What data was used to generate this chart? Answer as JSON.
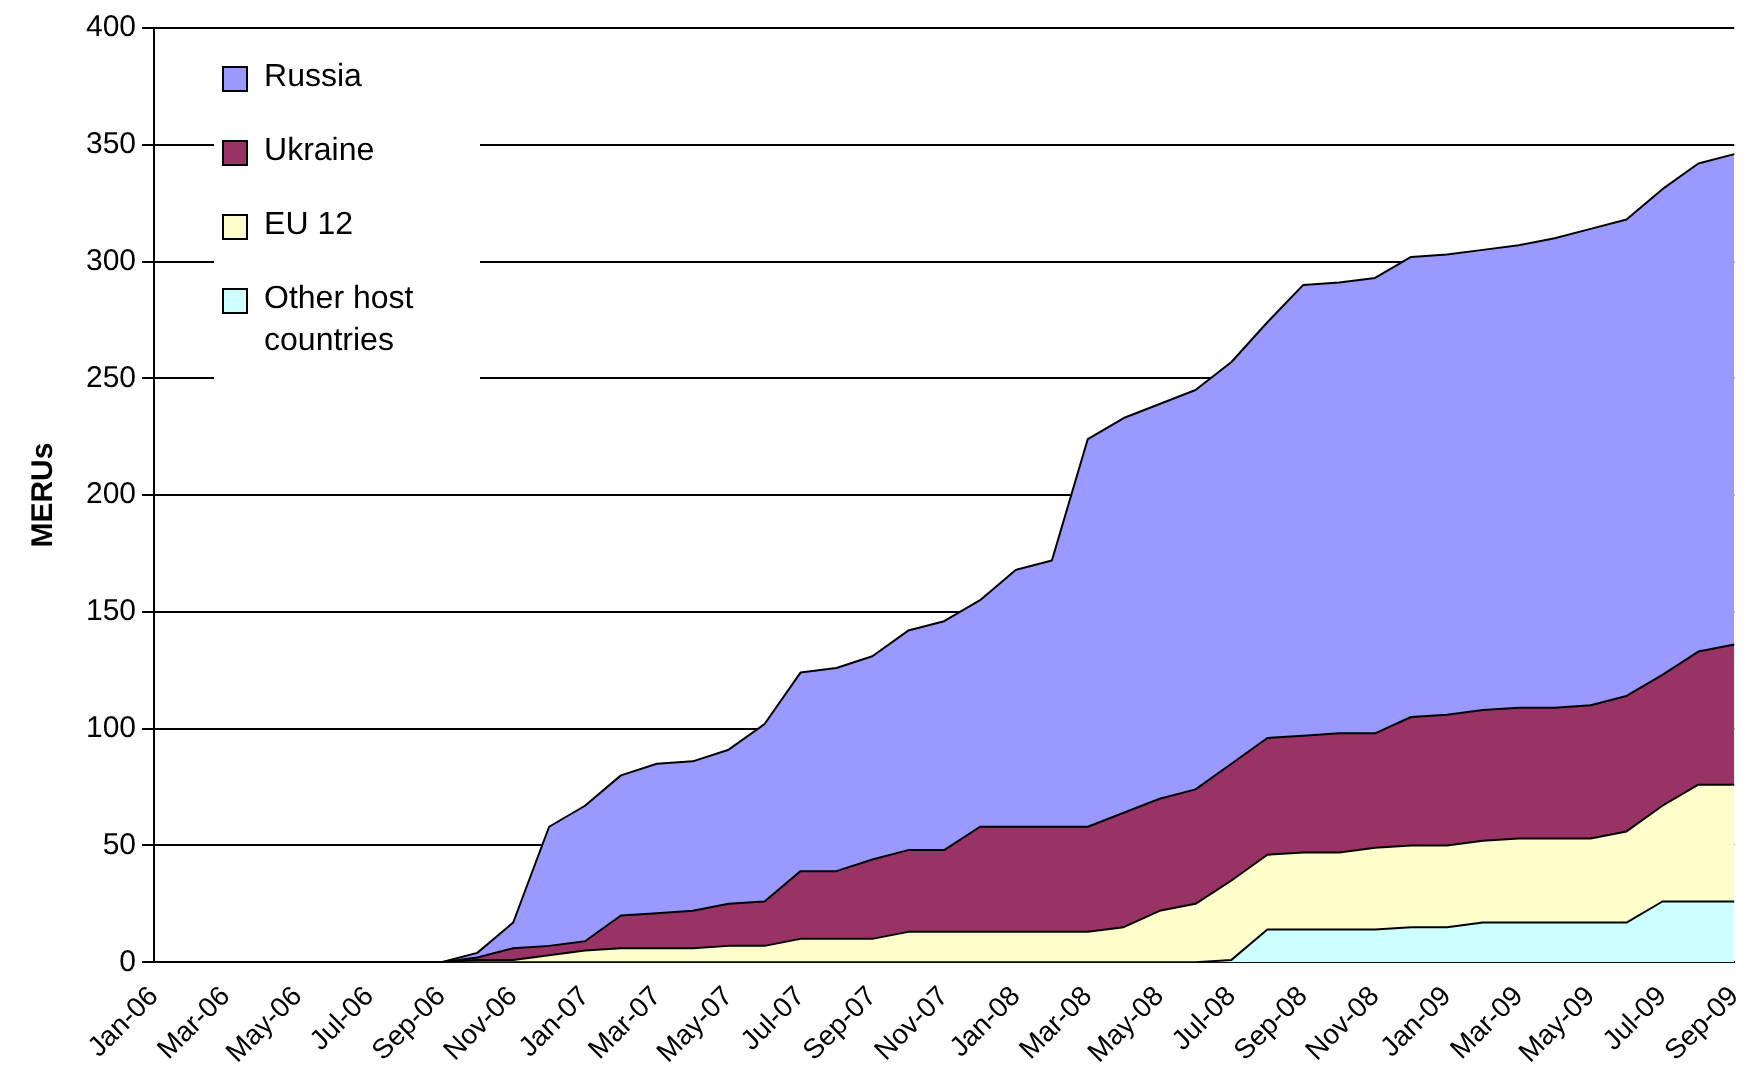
{
  "chart_data": {
    "type": "area",
    "stacked": true,
    "ylabel": "MERUs",
    "categories": [
      "Jan-06",
      null,
      "Mar-06",
      null,
      "May-06",
      null,
      "Jul-06",
      null,
      "Sep-06",
      null,
      "Nov-06",
      null,
      "Jan-07",
      null,
      "Mar-07",
      null,
      "May-07",
      null,
      "Jul-07",
      null,
      "Sep-07",
      null,
      "Nov-07",
      null,
      "Jan-08",
      null,
      "Mar-08",
      null,
      "May-08",
      null,
      "Jul-08",
      null,
      "Sep-08",
      null,
      "Nov-08",
      null,
      "Jan-09",
      null,
      "Mar-09",
      null,
      "May-09",
      null,
      "Jul-09",
      null,
      "Sep-09"
    ],
    "series": [
      {
        "name": "Other host countries",
        "color": "#ccffff",
        "values": [
          0,
          0,
          0,
          0,
          0,
          0,
          0,
          0,
          0,
          0,
          0,
          0,
          0,
          0,
          0,
          0,
          0,
          0,
          0,
          0,
          0,
          0,
          0,
          0,
          0,
          0,
          0,
          0,
          0,
          0,
          1,
          14,
          14,
          14,
          14,
          15,
          15,
          17,
          17,
          17,
          17,
          17,
          26,
          26,
          26
        ]
      },
      {
        "name": "EU 12",
        "color": "#ffffcc",
        "values": [
          0,
          0,
          0,
          0,
          0,
          0,
          0,
          0,
          0,
          1,
          1,
          3,
          5,
          6,
          6,
          6,
          7,
          7,
          10,
          10,
          10,
          13,
          13,
          13,
          13,
          13,
          13,
          15,
          22,
          25,
          34,
          32,
          33,
          33,
          35,
          35,
          35,
          35,
          36,
          36,
          36,
          39,
          41,
          50,
          50
        ]
      },
      {
        "name": "Ukraine",
        "color": "#993366",
        "values": [
          0,
          0,
          0,
          0,
          0,
          0,
          0,
          0,
          0,
          1,
          5,
          4,
          4,
          14,
          15,
          16,
          18,
          19,
          29,
          29,
          34,
          35,
          35,
          45,
          45,
          45,
          45,
          49,
          48,
          49,
          50,
          50,
          50,
          51,
          49,
          55,
          56,
          56,
          56,
          56,
          57,
          58,
          56,
          57,
          60
        ]
      },
      {
        "name": "Russia",
        "color": "#9999ff",
        "values": [
          0,
          0,
          0,
          0,
          0,
          0,
          0,
          0,
          0,
          2,
          11,
          51,
          58,
          60,
          64,
          64,
          66,
          76,
          85,
          87,
          87,
          94,
          98,
          97,
          110,
          114,
          166,
          169,
          169,
          171,
          172,
          178,
          193,
          193,
          195,
          197,
          197,
          197,
          198,
          201,
          204,
          204,
          208,
          209,
          210
        ]
      }
    ],
    "ylim": [
      0,
      400
    ],
    "yticks": [
      0,
      50,
      100,
      150,
      200,
      250,
      300,
      350,
      400
    ],
    "grid": "y",
    "legend": "top left"
  }
}
